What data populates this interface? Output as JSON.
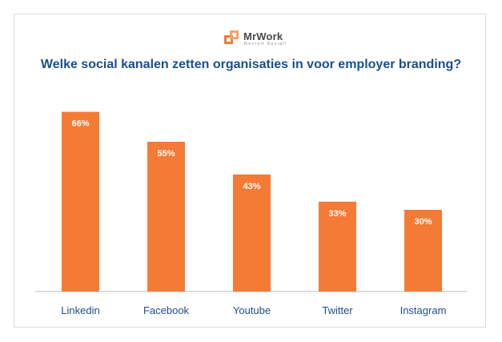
{
  "brand": {
    "name": "MrWork",
    "tagline": "Recruit Social!",
    "accent_color": "#f47b35"
  },
  "chart_data": {
    "type": "bar",
    "title": "Welke social kanalen zetten organisaties in voor employer branding?",
    "categories": [
      "Linkedin",
      "Facebook",
      "Youtube",
      "Twitter",
      "Instagram"
    ],
    "values": [
      66,
      55,
      43,
      33,
      30
    ],
    "value_labels": [
      "66%",
      "55%",
      "43%",
      "33%",
      "30%"
    ],
    "ylim": [
      0,
      80
    ],
    "grid": false,
    "legend": "none",
    "bar_color": "#f47b35",
    "label_color": "#1a4f8f"
  }
}
